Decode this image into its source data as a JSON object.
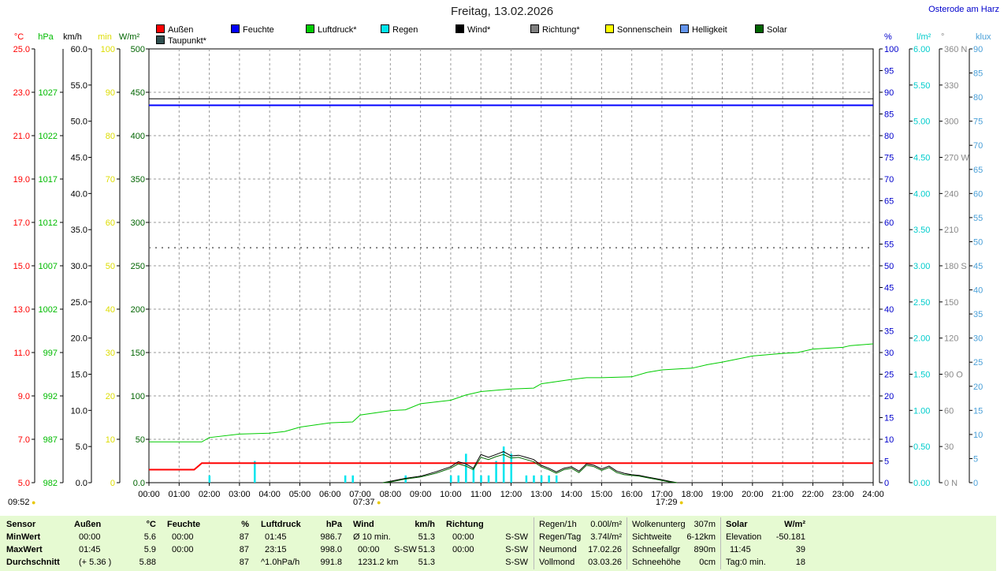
{
  "header": {
    "title": "Freitag, 13.02.2026",
    "location": "Osterode am Harz"
  },
  "legend": [
    {
      "label": "Außen",
      "color": "#ff0000"
    },
    {
      "label": "Feuchte",
      "color": "#0000ff"
    },
    {
      "label": "Luftdruck*",
      "color": "#00cc00"
    },
    {
      "label": "Regen",
      "color": "#00e5ee"
    },
    {
      "label": "Wind*",
      "color": "#000000"
    },
    {
      "label": "Richtung*",
      "color": "#808080"
    },
    {
      "label": "Sonnenschein",
      "color": "#ffff00"
    },
    {
      "label": "Helligkeit",
      "color": "#6495ed"
    },
    {
      "label": "Solar",
      "color": "#006400"
    },
    {
      "label": "Taupunkt*",
      "color": "#2f4f4f"
    }
  ],
  "markers": {
    "start_label": "09:52",
    "sunrise_label": "07:37",
    "sunset_label": "17:29"
  },
  "chart_data": {
    "type": "line",
    "x_ticks": [
      "00:00",
      "01:00",
      "02:00",
      "03:00",
      "04:00",
      "05:00",
      "06:00",
      "07:00",
      "08:00",
      "09:00",
      "10:00",
      "11:00",
      "12:00",
      "13:00",
      "14:00",
      "15:00",
      "16:00",
      "17:00",
      "18:00",
      "19:00",
      "20:00",
      "21:00",
      "22:00",
      "23:00",
      "24:00"
    ],
    "x_range_hours": [
      0,
      24
    ],
    "grid": true,
    "axes": {
      "temp": {
        "unit": "°C",
        "color": "#ff0000",
        "range": [
          5.0,
          25.0
        ],
        "ticks": [
          "25.0",
          "23.0",
          "21.0",
          "19.0",
          "17.0",
          "15.0",
          "13.0",
          "11.0",
          "9.0",
          "7.0",
          "5.0"
        ]
      },
      "pressure": {
        "unit": "hPa",
        "color": "#00bb00",
        "range": [
          982,
          1032
        ],
        "ticks": [
          "1027",
          "1022",
          "1017",
          "1012",
          "1007",
          "1002",
          "997",
          "992",
          "987",
          "982"
        ]
      },
      "wind": {
        "unit": "km/h",
        "color": "#000000",
        "range": [
          0.0,
          60.0
        ],
        "ticks": [
          "60.0",
          "55.0",
          "50.0",
          "45.0",
          "40.0",
          "35.0",
          "30.0",
          "25.0",
          "20.0",
          "15.0",
          "10.0",
          "5.0",
          "0.0"
        ]
      },
      "sunmin": {
        "unit": "min",
        "color": "#dddd00",
        "range": [
          0,
          100
        ],
        "ticks": [
          "100",
          "90",
          "80",
          "70",
          "60",
          "50",
          "40",
          "30",
          "20",
          "10",
          "0"
        ]
      },
      "solar": {
        "unit": "W/m²",
        "color": "#006400",
        "range": [
          0,
          500
        ],
        "ticks": [
          "500",
          "450",
          "400",
          "350",
          "300",
          "250",
          "200",
          "150",
          "100",
          "50",
          "0.0"
        ]
      },
      "humidity": {
        "unit": "%",
        "color": "#0000cc",
        "range": [
          0,
          100
        ],
        "ticks": [
          "100",
          "95",
          "90",
          "85",
          "80",
          "75",
          "70",
          "65",
          "60",
          "55",
          "50",
          "45",
          "40",
          "35",
          "30",
          "25",
          "20",
          "15",
          "10",
          "5",
          "0"
        ]
      },
      "rain": {
        "unit": "l/m²",
        "color": "#00cccc",
        "range": [
          0,
          6.0
        ],
        "ticks": [
          "6.00",
          "5.50",
          "5.00",
          "4.50",
          "4.00",
          "3.50",
          "3.00",
          "2.50",
          "2.00",
          "1.50",
          "1.00",
          "0.50",
          "0.00"
        ]
      },
      "direction": {
        "unit": "°",
        "color": "#888888",
        "range": [
          0,
          360
        ],
        "ticks": [
          "360 N",
          "330",
          "300",
          "270 W",
          "240",
          "210",
          "180 S",
          "150",
          "120",
          "90 O",
          "60",
          "30",
          "0 N"
        ]
      },
      "brightness": {
        "unit": "klux",
        "color": "#4aa0d8",
        "range": [
          0,
          90
        ],
        "ticks": [
          "90",
          "85",
          "80",
          "75",
          "70",
          "65",
          "60",
          "55",
          "50",
          "45",
          "40",
          "35",
          "30",
          "25",
          "20",
          "15",
          "10",
          "5",
          "0"
        ]
      }
    },
    "series": [
      {
        "name": "Feuchte",
        "axis": "humidity",
        "color": "#0000ff",
        "x": [
          0,
          24
        ],
        "y": [
          87,
          87
        ]
      },
      {
        "name": "Taupunkt*",
        "axis": "temp",
        "color": "#000000",
        "x": [
          0,
          24
        ],
        "y": [
          22.7,
          22.7
        ]
      },
      {
        "name": "Außen",
        "axis": "temp",
        "color": "#ff0000",
        "x": [
          0,
          1.5,
          1.75,
          24
        ],
        "y": [
          5.6,
          5.6,
          5.9,
          5.9
        ]
      },
      {
        "name": "Richtung*",
        "axis": "direction",
        "color": "#808080",
        "style": "dotted",
        "x": [
          0,
          24
        ],
        "y": [
          195,
          195
        ]
      },
      {
        "name": "Luftdruck*",
        "axis": "pressure",
        "color": "#00cc00",
        "x": [
          0,
          1,
          1.75,
          2,
          3,
          4,
          4.5,
          5,
          6,
          6.75,
          7,
          8,
          8.5,
          9,
          10,
          10.5,
          11,
          12,
          12.75,
          13,
          14,
          14.5,
          15,
          16,
          16.5,
          17,
          18,
          18.5,
          19,
          20,
          21,
          21.5,
          22,
          23,
          23.25,
          24
        ],
        "y": [
          986.7,
          986.7,
          986.7,
          987.2,
          987.6,
          987.7,
          987.9,
          988.4,
          988.9,
          989.0,
          989.8,
          990.3,
          990.4,
          991.1,
          991.5,
          992.1,
          992.5,
          992.8,
          992.9,
          993.4,
          993.9,
          994.1,
          994.1,
          994.2,
          994.7,
          995.0,
          995.2,
          995.6,
          995.9,
          996.6,
          996.9,
          997.0,
          997.4,
          997.6,
          997.8,
          998.0
        ]
      },
      {
        "name": "Wind*",
        "axis": "wind",
        "color": "#000000",
        "x": [
          7.75,
          8,
          8.5,
          9,
          9.5,
          10,
          10.25,
          10.5,
          10.75,
          11,
          11.25,
          11.5,
          11.75,
          12,
          12.25,
          12.5,
          12.75,
          13,
          13.25,
          13.5,
          13.75,
          14,
          14.25,
          14.5,
          14.75,
          15,
          15.25,
          15.5,
          15.75,
          16,
          16.25,
          16.5,
          16.75,
          17,
          17.25,
          17.5
        ],
        "y": [
          0,
          0.2,
          0.6,
          0.9,
          1.5,
          2.2,
          2.9,
          2.6,
          2.0,
          3.9,
          3.5,
          3.9,
          4.3,
          3.7,
          3.8,
          3.5,
          3.2,
          2.4,
          2.0,
          1.5,
          2.0,
          2.2,
          1.6,
          2.6,
          2.4,
          1.9,
          2.3,
          1.6,
          1.3,
          1.1,
          1.0,
          0.8,
          0.6,
          0.4,
          0.2,
          0
        ]
      },
      {
        "name": "Solar",
        "axis": "wind",
        "color": "#006400",
        "x": [
          7.75,
          8,
          8.5,
          9,
          9.5,
          10,
          10.25,
          10.5,
          10.75,
          11,
          11.25,
          11.5,
          11.75,
          12,
          12.25,
          12.5,
          12.75,
          13,
          13.25,
          13.5,
          13.75,
          14,
          14.25,
          14.5,
          14.75,
          15,
          15.25,
          15.5,
          15.75,
          16,
          16.25,
          16.5,
          16.75,
          17,
          17.25,
          17.5
        ],
        "y": [
          0,
          0.1,
          0.5,
          0.8,
          1.3,
          2.0,
          2.6,
          2.3,
          1.8,
          3.5,
          3.2,
          3.6,
          3.9,
          3.4,
          3.5,
          3.2,
          2.9,
          2.2,
          1.8,
          1.3,
          1.8,
          2.0,
          1.4,
          2.4,
          2.2,
          1.7,
          2.1,
          1.4,
          1.1,
          1.0,
          0.9,
          0.7,
          0.5,
          0.3,
          0.1,
          0
        ]
      }
    ],
    "bars": {
      "name": "Regen",
      "axis": "rain",
      "color": "#00e5ee",
      "x": [
        2,
        3.5,
        6.5,
        6.75,
        8.5,
        10,
        10.25,
        10.5,
        10.75,
        11,
        11.25,
        11.5,
        11.75,
        12,
        12.5,
        12.75,
        13,
        13.25,
        13.5
      ],
      "y": [
        0.1,
        0.3,
        0.1,
        0.1,
        0.1,
        0.1,
        0.1,
        0.4,
        0.2,
        0.1,
        0.1,
        0.3,
        0.5,
        0.4,
        0.1,
        0.1,
        0.1,
        0.1,
        0.1
      ]
    }
  },
  "stats": {
    "sensor": {
      "header": "Sensor",
      "rows": [
        "MinWert",
        "MaxWert",
        "Durchschnitt"
      ]
    },
    "aussen": {
      "header": "Außen",
      "unit": "°C",
      "rows": [
        {
          "time": "00:00",
          "value": "5.6"
        },
        {
          "time": "01:45",
          "value": "5.9"
        },
        {
          "time": "(+ 5.36 )",
          "value": "5.88"
        }
      ]
    },
    "feuchte": {
      "header": "Feuchte",
      "unit": "%",
      "rows": [
        {
          "time": "00:00",
          "value": "87"
        },
        {
          "time": "00:00",
          "value": "87"
        },
        {
          "time": "",
          "value": "87"
        }
      ]
    },
    "luftdruck": {
      "header": "Luftdruck",
      "unit": "hPa",
      "rows": [
        {
          "time": "01:45",
          "value": "986.7"
        },
        {
          "time": "23:15",
          "value": "998.0"
        },
        {
          "time": "^1.0hPa/h",
          "value": "991.8"
        }
      ]
    },
    "wind": {
      "header": "Wind",
      "unit": "km/h",
      "rows": [
        {
          "time": "Ø 10 min.",
          "mid": "",
          "value": "51.3"
        },
        {
          "time": "00:00",
          "mid": "S-SW",
          "value": "51.3"
        },
        {
          "time": "1231.2 km",
          "mid": "",
          "value": "51.3"
        }
      ]
    },
    "richtung": {
      "header": "Richtung",
      "rows": [
        {
          "time": "00:00",
          "value": "S-SW"
        },
        {
          "time": "00:00",
          "value": "S-SW"
        },
        {
          "time": "",
          "value": "S-SW"
        }
      ]
    },
    "regen": {
      "rows": [
        {
          "label": "Regen/1h",
          "value": "0.00l/m²"
        },
        {
          "label": "Regen/Tag",
          "value": "3.74l/m²"
        },
        {
          "label": "Neumond",
          "value": "17.02.26"
        },
        {
          "label": "Vollmond",
          "value": "03.03.26"
        }
      ]
    },
    "wolken": {
      "rows": [
        {
          "label": "Wolkenunterg",
          "value": "307m"
        },
        {
          "label": "Sichtweite",
          "value": "6-12km"
        },
        {
          "label": "Schneefallgr",
          "value": "890m"
        },
        {
          "label": "Schneehöhe",
          "value": "0cm"
        }
      ]
    },
    "solar": {
      "header": "Solar",
      "unit": "W/m²",
      "rows": [
        {
          "time": "Elevation",
          "value": "-50.181"
        },
        {
          "time": "11:45",
          "value": "39"
        },
        {
          "time": "Tag:0 min.",
          "value": "18"
        }
      ]
    }
  }
}
